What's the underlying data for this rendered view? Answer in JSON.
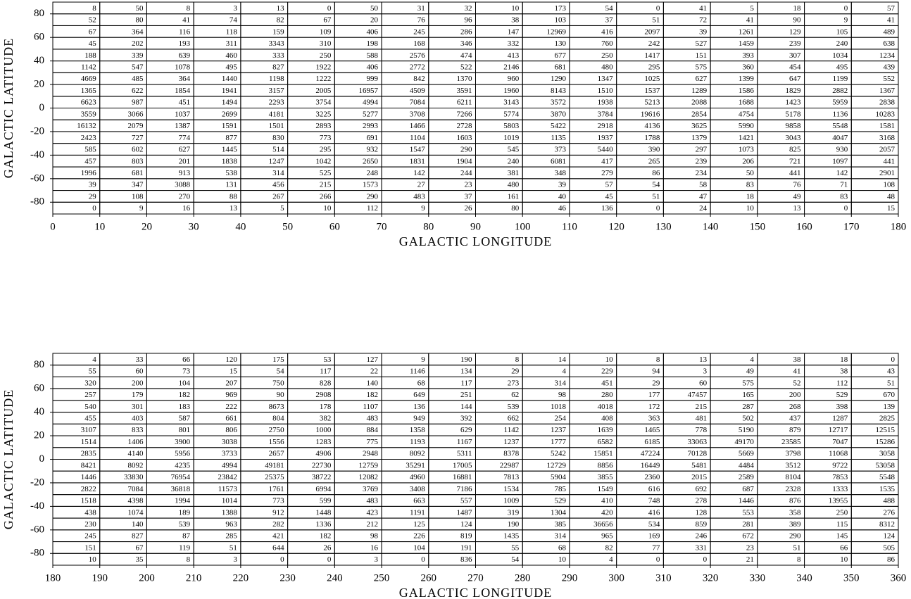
{
  "chart_data": [
    {
      "type": "grid",
      "xlabel": "GALACTIC LONGITUDE",
      "ylabel": "GALACTIC LATITUDE",
      "xlim": [
        0,
        180
      ],
      "ylim": [
        -90,
        90
      ],
      "xticks": [
        0,
        10,
        20,
        30,
        40,
        50,
        60,
        70,
        80,
        90,
        100,
        110,
        120,
        130,
        140,
        150,
        160,
        170,
        180
      ],
      "yticks": [
        80,
        60,
        40,
        20,
        0,
        -20,
        -40,
        -60,
        -80
      ],
      "values": [
        [
          8,
          50,
          8,
          3,
          13,
          0,
          50,
          31,
          32,
          10,
          173,
          54,
          0,
          41,
          5,
          18,
          0,
          57
        ],
        [
          52,
          80,
          41,
          74,
          82,
          67,
          20,
          76,
          96,
          38,
          103,
          37,
          51,
          72,
          41,
          90,
          9,
          41
        ],
        [
          67,
          364,
          116,
          118,
          159,
          109,
          406,
          245,
          286,
          147,
          12969,
          416,
          2097,
          39,
          1261,
          129,
          105,
          489
        ],
        [
          45,
          202,
          193,
          311,
          3343,
          310,
          198,
          168,
          346,
          332,
          130,
          760,
          242,
          527,
          1459,
          239,
          240,
          638
        ],
        [
          188,
          339,
          639,
          460,
          333,
          250,
          588,
          2576,
          474,
          413,
          677,
          250,
          1417,
          151,
          393,
          307,
          1034,
          1234
        ],
        [
          1142,
          547,
          1078,
          495,
          827,
          1922,
          406,
          2772,
          522,
          2146,
          681,
          480,
          295,
          575,
          360,
          454,
          495,
          439
        ],
        [
          4669,
          485,
          364,
          1440,
          1198,
          1222,
          999,
          842,
          1370,
          960,
          1290,
          1347,
          1025,
          627,
          1399,
          647,
          1199,
          552
        ],
        [
          1365,
          622,
          1854,
          1941,
          3157,
          2005,
          16957,
          4509,
          3591,
          1960,
          8143,
          1510,
          1537,
          1289,
          1586,
          1829,
          2882,
          1367
        ],
        [
          6623,
          987,
          451,
          1494,
          2293,
          3754,
          4994,
          7084,
          6211,
          3143,
          3572,
          1938,
          5213,
          2088,
          1688,
          1423,
          5959,
          2838
        ],
        [
          3559,
          3066,
          1037,
          2699,
          4181,
          3225,
          5277,
          3708,
          7266,
          5774,
          3870,
          3784,
          19616,
          2854,
          4754,
          5178,
          1136,
          10283
        ],
        [
          16132,
          2079,
          1387,
          1591,
          1501,
          2893,
          2993,
          1466,
          2728,
          5803,
          5422,
          2918,
          4136,
          3625,
          5990,
          9858,
          5548,
          1581
        ],
        [
          2423,
          727,
          774,
          877,
          830,
          773,
          691,
          1104,
          1603,
          1019,
          1135,
          1937,
          1788,
          1379,
          1421,
          3043,
          4047,
          3168
        ],
        [
          585,
          602,
          627,
          1445,
          514,
          295,
          932,
          1547,
          290,
          545,
          373,
          5440,
          390,
          297,
          1073,
          825,
          930,
          2057
        ],
        [
          457,
          803,
          201,
          1838,
          1247,
          1042,
          2650,
          1831,
          1904,
          240,
          6081,
          417,
          265,
          239,
          206,
          721,
          1097,
          441
        ],
        [
          1996,
          681,
          913,
          538,
          314,
          525,
          248,
          142,
          244,
          381,
          348,
          279,
          86,
          234,
          50,
          441,
          142,
          2901
        ],
        [
          39,
          347,
          3088,
          131,
          456,
          215,
          1573,
          27,
          23,
          480,
          39,
          57,
          54,
          58,
          83,
          76,
          71,
          108
        ],
        [
          29,
          108,
          270,
          88,
          267,
          266,
          290,
          483,
          37,
          161,
          40,
          45,
          51,
          47,
          18,
          49,
          83,
          48
        ],
        [
          0,
          9,
          16,
          13,
          5,
          10,
          112,
          9,
          26,
          80,
          46,
          136,
          0,
          24,
          10,
          13,
          0,
          15
        ]
      ]
    },
    {
      "type": "grid",
      "xlabel": "GALACTIC LONGITUDE",
      "ylabel": "GALACTIC LATITUDE",
      "xlim": [
        180,
        360
      ],
      "ylim": [
        -90,
        90
      ],
      "xticks": [
        180,
        190,
        200,
        210,
        220,
        230,
        240,
        250,
        260,
        270,
        280,
        290,
        300,
        310,
        320,
        330,
        340,
        350,
        360
      ],
      "yticks": [
        80,
        60,
        40,
        20,
        0,
        -20,
        -40,
        -60,
        -80
      ],
      "values": [
        [
          4,
          33,
          66,
          120,
          175,
          53,
          127,
          9,
          190,
          8,
          14,
          10,
          8,
          13,
          4,
          38,
          18,
          0
        ],
        [
          55,
          60,
          73,
          15,
          54,
          117,
          22,
          1146,
          134,
          29,
          4,
          229,
          94,
          3,
          49,
          41,
          38,
          43
        ],
        [
          320,
          200,
          104,
          207,
          750,
          828,
          140,
          68,
          117,
          273,
          314,
          451,
          29,
          60,
          575,
          52,
          112,
          51
        ],
        [
          257,
          179,
          182,
          969,
          90,
          2908,
          182,
          649,
          251,
          62,
          98,
          280,
          177,
          47457,
          165,
          200,
          529,
          670
        ],
        [
          540,
          301,
          183,
          222,
          8673,
          178,
          1107,
          136,
          144,
          539,
          1018,
          4018,
          172,
          215,
          287,
          268,
          398,
          139
        ],
        [
          455,
          403,
          587,
          661,
          804,
          382,
          483,
          949,
          392,
          662,
          254,
          408,
          363,
          481,
          502,
          437,
          1287,
          2825
        ],
        [
          3107,
          833,
          801,
          806,
          2750,
          1000,
          884,
          1358,
          629,
          1142,
          1237,
          1639,
          1465,
          778,
          5190,
          879,
          12717,
          12515
        ],
        [
          1514,
          1406,
          3900,
          3038,
          1556,
          1283,
          775,
          1193,
          1167,
          1237,
          1777,
          6582,
          6185,
          33063,
          49170,
          23585,
          7047,
          15286
        ],
        [
          2835,
          4140,
          5956,
          3733,
          2657,
          4906,
          2948,
          8092,
          5311,
          8378,
          5242,
          15851,
          47224,
          70128,
          5669,
          3798,
          11068,
          3058
        ],
        [
          8421,
          8092,
          4235,
          4994,
          49181,
          22730,
          12759,
          35291,
          17005,
          22987,
          12729,
          8856,
          16449,
          5481,
          4484,
          3512,
          9722,
          53058
        ],
        [
          1446,
          33830,
          76954,
          23842,
          25375,
          38722,
          12082,
          4960,
          16881,
          7813,
          5904,
          3855,
          2360,
          2015,
          2589,
          8104,
          7853,
          5548
        ],
        [
          2822,
          7084,
          36818,
          11573,
          1761,
          6994,
          3769,
          3408,
          7186,
          1534,
          785,
          1549,
          616,
          692,
          687,
          2328,
          1333,
          1535
        ],
        [
          1518,
          4398,
          1994,
          1014,
          773,
          599,
          483,
          663,
          557,
          1009,
          529,
          410,
          748,
          278,
          1446,
          876,
          13955,
          488
        ],
        [
          438,
          1074,
          189,
          1388,
          912,
          1448,
          423,
          1191,
          1487,
          319,
          1304,
          420,
          416,
          128,
          553,
          358,
          250,
          276
        ],
        [
          230,
          140,
          539,
          963,
          282,
          1336,
          212,
          125,
          124,
          190,
          385,
          36656,
          534,
          859,
          281,
          389,
          115,
          8312
        ],
        [
          245,
          827,
          87,
          285,
          421,
          182,
          98,
          226,
          819,
          1435,
          314,
          965,
          169,
          246,
          672,
          290,
          145,
          124
        ],
        [
          151,
          67,
          119,
          51,
          644,
          26,
          16,
          104,
          191,
          55,
          68,
          82,
          77,
          331,
          23,
          51,
          66,
          505
        ],
        [
          10,
          35,
          8,
          3,
          0,
          0,
          3,
          0,
          836,
          54,
          10,
          4,
          0,
          0,
          21,
          8,
          10,
          86
        ]
      ]
    }
  ]
}
